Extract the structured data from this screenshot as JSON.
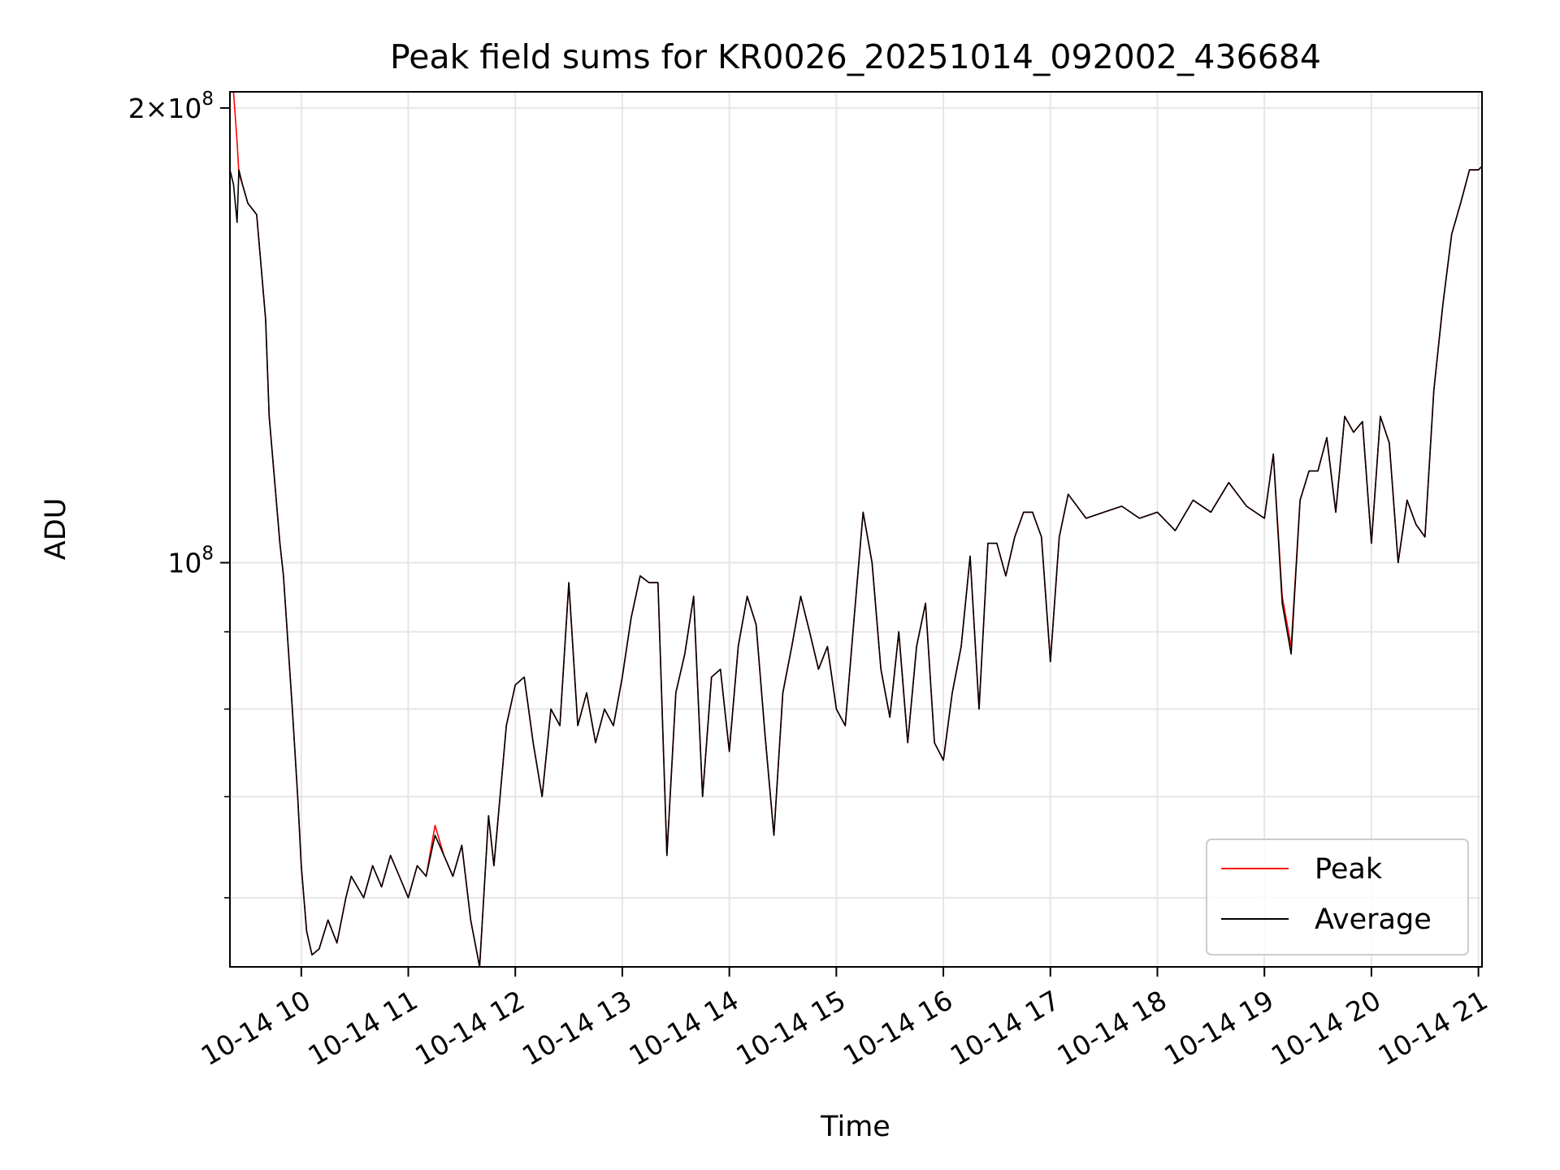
{
  "chart_data": {
    "type": "line",
    "title": "Peak field sums for KR0026_20251014_092002_436684",
    "xlabel": "Time",
    "ylabel": "ADU",
    "y_scale": "log",
    "grid": true,
    "legend_position": "lower-right",
    "xlim": [
      "2025-10-14 09:20",
      "2025-10-14 21:02"
    ],
    "ylim": [
      54000000,
      205000000
    ],
    "x_ticks": [
      "10-14 10",
      "10-14 11",
      "10-14 12",
      "10-14 13",
      "10-14 14",
      "10-14 15",
      "10-14 16",
      "10-14 17",
      "10-14 18",
      "10-14 19",
      "10-14 20",
      "10-14 21"
    ],
    "y_ticks": [
      {
        "value": 200000000,
        "base": "2×10",
        "exp": "8"
      },
      {
        "value": 100000000,
        "base": "10",
        "exp": "8"
      }
    ],
    "x": [
      "09:20",
      "09:22",
      "09:24",
      "09:25",
      "09:27",
      "09:30",
      "09:35",
      "09:40",
      "09:42",
      "09:48",
      "09:50",
      "09:55",
      "09:58",
      "10:00",
      "10:03",
      "10:06",
      "10:10",
      "10:15",
      "10:20",
      "10:25",
      "10:28",
      "10:35",
      "10:40",
      "10:45",
      "10:50",
      "10:55",
      "11:00",
      "11:05",
      "11:10",
      "11:15",
      "11:20",
      "11:25",
      "11:30",
      "11:35",
      "11:40",
      "11:45",
      "11:48",
      "11:55",
      "12:00",
      "12:05",
      "12:10",
      "12:15",
      "12:20",
      "12:25",
      "12:30",
      "12:35",
      "12:40",
      "12:45",
      "12:50",
      "12:55",
      "13:00",
      "13:05",
      "13:10",
      "13:15",
      "13:20",
      "13:25",
      "13:30",
      "13:35",
      "13:40",
      "13:45",
      "13:50",
      "13:55",
      "14:00",
      "14:05",
      "14:10",
      "14:15",
      "14:20",
      "14:25",
      "14:30",
      "14:35",
      "14:40",
      "14:45",
      "14:50",
      "14:55",
      "15:00",
      "15:05",
      "15:10",
      "15:15",
      "15:20",
      "15:25",
      "15:30",
      "15:35",
      "15:40",
      "15:45",
      "15:50",
      "15:55",
      "16:00",
      "16:05",
      "16:10",
      "16:15",
      "16:20",
      "16:25",
      "16:30",
      "16:35",
      "16:40",
      "16:45",
      "16:50",
      "16:55",
      "17:00",
      "17:05",
      "17:10",
      "17:20",
      "17:30",
      "17:40",
      "17:50",
      "18:00",
      "18:10",
      "18:20",
      "18:30",
      "18:40",
      "18:50",
      "19:00",
      "19:05",
      "19:10",
      "19:15",
      "19:20",
      "19:25",
      "19:30",
      "19:35",
      "19:40",
      "19:45",
      "19:50",
      "19:55",
      "20:00",
      "20:05",
      "20:10",
      "20:15",
      "20:20",
      "20:25",
      "20:30",
      "20:35",
      "20:40",
      "20:45",
      "20:50",
      "20:55",
      "21:00",
      "21:02"
    ],
    "series": [
      {
        "name": "Peak",
        "color": "#ff0000",
        "values": [
          205000000,
          205000000,
          190000000,
          181000000,
          178000000,
          173000000,
          170000000,
          145000000,
          125000000,
          103000000,
          98000000,
          80000000,
          70000000,
          63000000,
          57000000,
          55000000,
          55500000,
          58000000,
          56000000,
          60000000,
          62000000,
          60000000,
          63000000,
          61000000,
          64000000,
          62000000,
          60000000,
          63000000,
          62000000,
          67000000,
          64000000,
          62000000,
          65000000,
          58000000,
          54000000,
          68000000,
          63000000,
          78000000,
          83000000,
          84000000,
          76000000,
          70000000,
          80000000,
          78000000,
          97000000,
          78000000,
          82000000,
          76000000,
          80000000,
          78000000,
          84000000,
          92000000,
          98000000,
          97000000,
          97000000,
          64000000,
          82000000,
          87000000,
          95000000,
          70000000,
          84000000,
          85000000,
          75000000,
          88000000,
          95000000,
          91000000,
          77000000,
          66000000,
          82000000,
          88000000,
          95000000,
          90000000,
          85000000,
          88000000,
          80000000,
          78000000,
          92000000,
          108000000,
          100000000,
          85000000,
          79000000,
          90000000,
          76000000,
          88000000,
          94000000,
          76000000,
          74000000,
          82000000,
          88000000,
          101000000,
          80000000,
          103000000,
          103000000,
          98000000,
          104000000,
          108000000,
          108000000,
          104000000,
          86000000,
          104000000,
          111000000,
          107000000,
          108000000,
          109000000,
          107000000,
          108000000,
          105000000,
          110000000,
          108000000,
          113000000,
          109000000,
          107000000,
          118000000,
          95000000,
          88000000,
          110000000,
          115000000,
          115000000,
          121000000,
          108000000,
          125000000,
          122000000,
          124000000,
          103000000,
          125000000,
          120000000,
          100000000,
          110000000,
          106000000,
          104000000,
          130000000,
          148000000,
          165000000,
          173000000,
          182000000,
          182000000,
          183000000
        ]
      },
      {
        "name": "Average",
        "color": "#000000",
        "values": [
          182000000,
          178000000,
          168000000,
          182000000,
          178000000,
          173000000,
          170000000,
          145000000,
          125000000,
          103000000,
          98000000,
          80000000,
          70000000,
          63000000,
          57000000,
          55000000,
          55500000,
          58000000,
          56000000,
          60000000,
          62000000,
          60000000,
          63000000,
          61000000,
          64000000,
          62000000,
          60000000,
          63000000,
          62000000,
          66000000,
          64000000,
          62000000,
          65000000,
          58000000,
          54000000,
          68000000,
          63000000,
          78000000,
          83000000,
          84000000,
          76000000,
          70000000,
          80000000,
          78000000,
          97000000,
          78000000,
          82000000,
          76000000,
          80000000,
          78000000,
          84000000,
          92000000,
          98000000,
          97000000,
          97000000,
          64000000,
          82000000,
          87000000,
          95000000,
          70000000,
          84000000,
          85000000,
          75000000,
          88000000,
          95000000,
          91000000,
          77000000,
          66000000,
          82000000,
          88000000,
          95000000,
          90000000,
          85000000,
          88000000,
          80000000,
          78000000,
          92000000,
          108000000,
          100000000,
          85000000,
          79000000,
          90000000,
          76000000,
          88000000,
          94000000,
          76000000,
          74000000,
          82000000,
          88000000,
          101000000,
          80000000,
          103000000,
          103000000,
          98000000,
          104000000,
          108000000,
          108000000,
          104000000,
          86000000,
          104000000,
          111000000,
          107000000,
          108000000,
          109000000,
          107000000,
          108000000,
          105000000,
          110000000,
          108000000,
          113000000,
          109000000,
          107000000,
          118000000,
          94000000,
          87000000,
          110000000,
          115000000,
          115000000,
          121000000,
          108000000,
          125000000,
          122000000,
          124000000,
          103000000,
          125000000,
          120000000,
          100000000,
          110000000,
          106000000,
          104000000,
          130000000,
          148000000,
          165000000,
          173000000,
          182000000,
          182000000,
          183000000
        ]
      }
    ]
  }
}
